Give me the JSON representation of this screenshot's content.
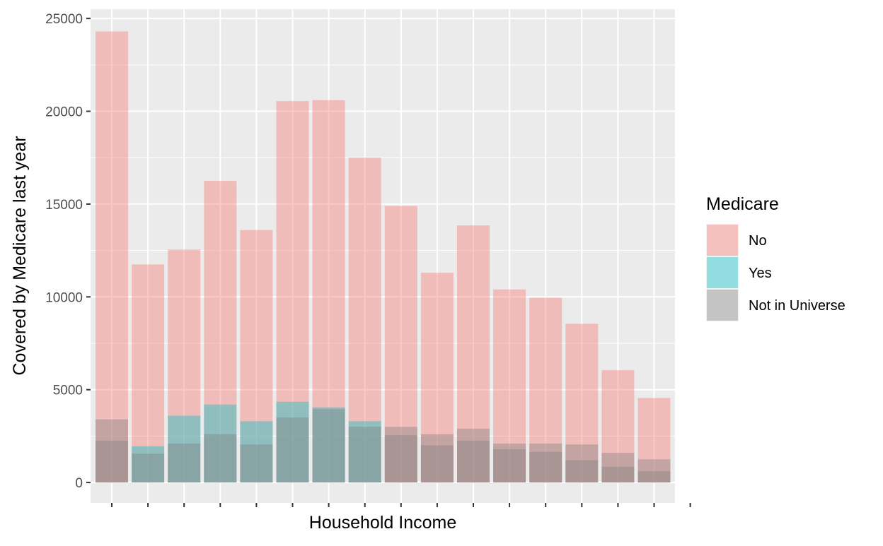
{
  "chart_data": {
    "type": "bar",
    "title": "",
    "xlabel": "Household Income",
    "ylabel": "Covered by Medicare last year",
    "ylim": [
      -1100,
      25500
    ],
    "y_ticks": [
      0,
      5000,
      10000,
      15000,
      20000,
      25000
    ],
    "y_tick_labels": [
      "0",
      "5000",
      "10000",
      "15000",
      "20000",
      "25000"
    ],
    "categories": [
      "",
      "",
      "",
      "",
      "",
      "",
      "",
      "",
      "",
      "",
      "",
      "",
      "",
      "",
      "",
      "",
      ""
    ],
    "position": "identity (overlapping, semi-transparent)",
    "grid": true,
    "legend": {
      "title": "Medicare",
      "placement": "right"
    },
    "series": [
      {
        "name": "No",
        "color": "#F8766D",
        "values": [
          24300,
          11750,
          12550,
          16250,
          13600,
          20550,
          20600,
          17500,
          14900,
          11300,
          13850,
          10400,
          9950,
          8550,
          6050,
          4550,
          0
        ]
      },
      {
        "name": "Yes",
        "color": "#00BFC4",
        "values": [
          0,
          1950,
          3600,
          4200,
          3300,
          4350,
          4050,
          3300,
          0,
          0,
          0,
          0,
          0,
          0,
          0,
          0,
          0
        ]
      },
      {
        "name": "Not in Universe",
        "color": "#7F7F7F",
        "values": [
          2250,
          1550,
          2100,
          2600,
          2050,
          3500,
          3950,
          3000,
          2550,
          2000,
          2250,
          1800,
          1650,
          1200,
          850,
          600,
          0
        ]
      }
    ],
    "extra_overlays": [
      {
        "series": "Not in Universe",
        "index": 0,
        "value": 3400
      },
      {
        "series": "Not in Universe",
        "index": 8,
        "value": 3000
      },
      {
        "series": "Not in Universe",
        "index": 9,
        "value": 2600
      },
      {
        "series": "Not in Universe",
        "index": 10,
        "value": 2900
      },
      {
        "series": "Not in Universe",
        "index": 11,
        "value": 2100
      },
      {
        "series": "Not in Universe",
        "index": 12,
        "value": 2100
      },
      {
        "series": "Not in Universe",
        "index": 13,
        "value": 2050
      },
      {
        "series": "Not in Universe",
        "index": 14,
        "value": 1600
      },
      {
        "series": "Not in Universe",
        "index": 15,
        "value": 1250
      }
    ]
  }
}
